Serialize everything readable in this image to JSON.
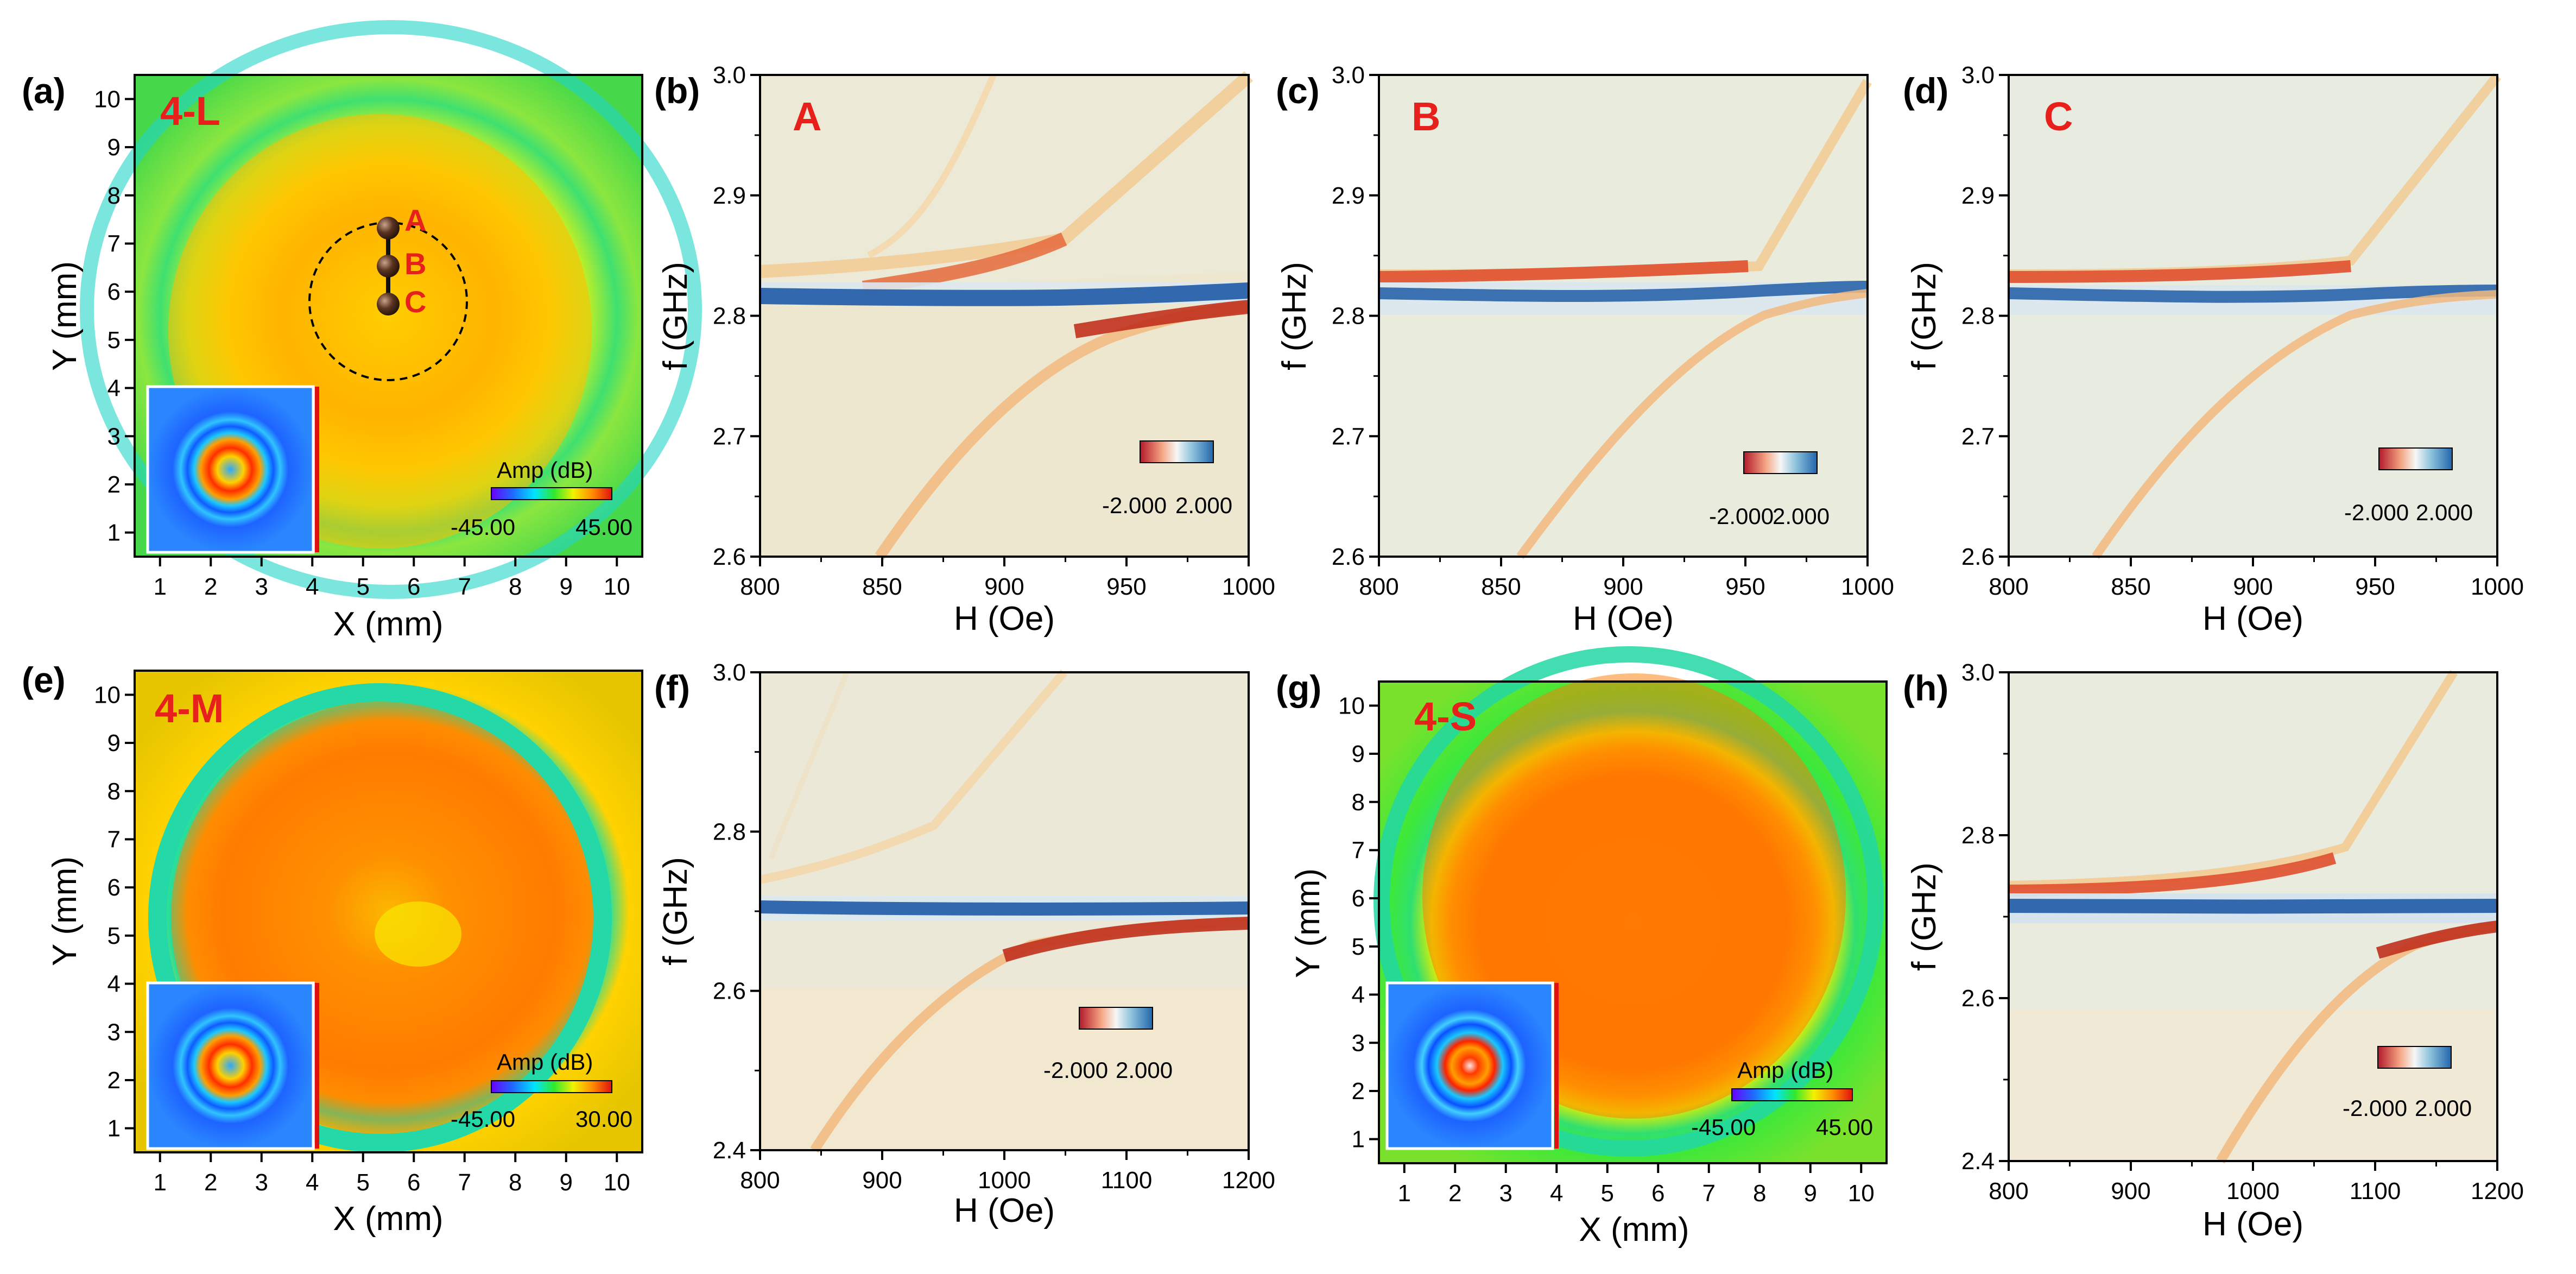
{
  "figure": {
    "colors": {
      "red_label": "#e8201c",
      "axis": "#000000",
      "background": "#ffffff"
    },
    "panels": [
      {
        "id": "a",
        "panel_label": "(a)",
        "sample_label": "4-L",
        "kind": "map",
        "xlabel": "X (mm)",
        "ylabel": "Y (mm)",
        "xticks": [
          "1",
          "2",
          "3",
          "4",
          "5",
          "6",
          "7",
          "8",
          "9",
          "10"
        ],
        "yticks": [
          "1",
          "2",
          "3",
          "4",
          "5",
          "6",
          "7",
          "8",
          "9",
          "10"
        ],
        "colorbar": {
          "title": "Amp (dB)",
          "min": "-45.00",
          "max": "45.00"
        },
        "points": [
          {
            "name": "A",
            "x": 5.6,
            "y": 7.4
          },
          {
            "name": "B",
            "x": 5.6,
            "y": 6.6
          },
          {
            "name": "C",
            "x": 5.6,
            "y": 5.8
          }
        ],
        "dashed_circle": {
          "cx": 5.6,
          "cy": 6.0,
          "r": 1.6
        }
      },
      {
        "id": "b",
        "panel_label": "(b)",
        "sample_label": "A",
        "kind": "dispersion",
        "xlabel": "H (Oe)",
        "ylabel": "f (GHz)",
        "xticks": [
          "800",
          "850",
          "900",
          "950",
          "1000"
        ],
        "yticks": [
          "2.6",
          "2.7",
          "2.8",
          "2.9",
          "3.0"
        ],
        "colorbar": {
          "min": "-2.000",
          "max": "2.000"
        }
      },
      {
        "id": "c",
        "panel_label": "(c)",
        "sample_label": "B",
        "kind": "dispersion",
        "xlabel": "H (Oe)",
        "ylabel": "f (GHz)",
        "xticks": [
          "800",
          "850",
          "900",
          "950",
          "1000"
        ],
        "yticks": [
          "2.6",
          "2.7",
          "2.8",
          "2.9",
          "3.0"
        ],
        "colorbar": {
          "min": "-2.000",
          "max": "2.000"
        }
      },
      {
        "id": "d",
        "panel_label": "(d)",
        "sample_label": "C",
        "kind": "dispersion",
        "xlabel": "H (Oe)",
        "ylabel": "f (GHz)",
        "xticks": [
          "800",
          "850",
          "900",
          "950",
          "1000"
        ],
        "yticks": [
          "2.6",
          "2.7",
          "2.8",
          "2.9",
          "3.0"
        ],
        "colorbar": {
          "min": "-2.000",
          "max": "2.000"
        }
      },
      {
        "id": "e",
        "panel_label": "(e)",
        "sample_label": "4-M",
        "kind": "map",
        "xlabel": "X (mm)",
        "ylabel": "Y (mm)",
        "xticks": [
          "1",
          "2",
          "3",
          "4",
          "5",
          "6",
          "7",
          "8",
          "9",
          "10"
        ],
        "yticks": [
          "1",
          "2",
          "3",
          "4",
          "5",
          "6",
          "7",
          "8",
          "9",
          "10"
        ],
        "colorbar": {
          "title": "Amp (dB)",
          "min": "-45.00",
          "max": "30.00"
        }
      },
      {
        "id": "f",
        "panel_label": "(f)",
        "sample_label": "",
        "kind": "dispersion",
        "xlabel": "H (Oe)",
        "ylabel": "f (GHz)",
        "xticks": [
          "800",
          "900",
          "1000",
          "1100",
          "1200"
        ],
        "yticks": [
          "2.4",
          "2.6",
          "2.8",
          "3.0"
        ],
        "colorbar": {
          "min": "-2.000",
          "max": "2.000"
        }
      },
      {
        "id": "g",
        "panel_label": "(g)",
        "sample_label": "4-S",
        "kind": "map",
        "xlabel": "X (mm)",
        "ylabel": "Y (mm)",
        "xticks": [
          "1",
          "2",
          "3",
          "4",
          "5",
          "6",
          "7",
          "8",
          "9",
          "10"
        ],
        "yticks": [
          "1",
          "2",
          "3",
          "4",
          "5",
          "6",
          "7",
          "8",
          "9",
          "10"
        ],
        "colorbar": {
          "title": "Amp (dB)",
          "min": "-45.00",
          "max": "45.00"
        }
      },
      {
        "id": "h",
        "panel_label": "(h)",
        "sample_label": "",
        "kind": "dispersion",
        "xlabel": "H (Oe)",
        "ylabel": "f (GHz)",
        "xticks": [
          "800",
          "900",
          "1000",
          "1100",
          "1200"
        ],
        "yticks": [
          "2.4",
          "2.6",
          "2.8",
          "3.0"
        ],
        "colorbar": {
          "min": "-2.000",
          "max": "2.000"
        }
      }
    ]
  },
  "chart_data": [
    {
      "type": "heatmap",
      "title": "4-L",
      "xlabel": "X (mm)",
      "ylabel": "Y (mm)",
      "xlim": [
        0.5,
        10.5
      ],
      "ylim": [
        0.5,
        10.5
      ],
      "colorbar_range": [
        -45,
        45
      ],
      "annotations": [
        "A",
        "B",
        "C"
      ]
    },
    {
      "type": "heatmap",
      "title": "A",
      "xlabel": "H (Oe)",
      "ylabel": "f (GHz)",
      "xlim": [
        800,
        1000
      ],
      "ylim": [
        2.6,
        3.0
      ],
      "colorbar_range": [
        -2,
        2
      ]
    },
    {
      "type": "heatmap",
      "title": "B",
      "xlabel": "H (Oe)",
      "ylabel": "f (GHz)",
      "xlim": [
        800,
        1000
      ],
      "ylim": [
        2.6,
        3.0
      ],
      "colorbar_range": [
        -2,
        2
      ]
    },
    {
      "type": "heatmap",
      "title": "C",
      "xlabel": "H (Oe)",
      "ylabel": "f (GHz)",
      "xlim": [
        800,
        1000
      ],
      "ylim": [
        2.6,
        3.0
      ],
      "colorbar_range": [
        -2,
        2
      ]
    },
    {
      "type": "heatmap",
      "title": "4-M",
      "xlabel": "X (mm)",
      "ylabel": "Y (mm)",
      "xlim": [
        0.5,
        10.5
      ],
      "ylim": [
        0.5,
        10.5
      ],
      "colorbar_range": [
        -45,
        30
      ]
    },
    {
      "type": "heatmap",
      "title": "",
      "xlabel": "H (Oe)",
      "ylabel": "f (GHz)",
      "xlim": [
        800,
        1200
      ],
      "ylim": [
        2.4,
        3.0
      ],
      "colorbar_range": [
        -2,
        2
      ]
    },
    {
      "type": "heatmap",
      "title": "4-S",
      "xlabel": "X (mm)",
      "ylabel": "Y (mm)",
      "xlim": [
        0.5,
        10.5
      ],
      "ylim": [
        0.5,
        10.5
      ],
      "colorbar_range": [
        -45,
        45
      ]
    },
    {
      "type": "heatmap",
      "title": "",
      "xlabel": "H (Oe)",
      "ylabel": "f (GHz)",
      "xlim": [
        800,
        1200
      ],
      "ylim": [
        2.4,
        3.0
      ],
      "colorbar_range": [
        -2,
        2
      ]
    }
  ]
}
